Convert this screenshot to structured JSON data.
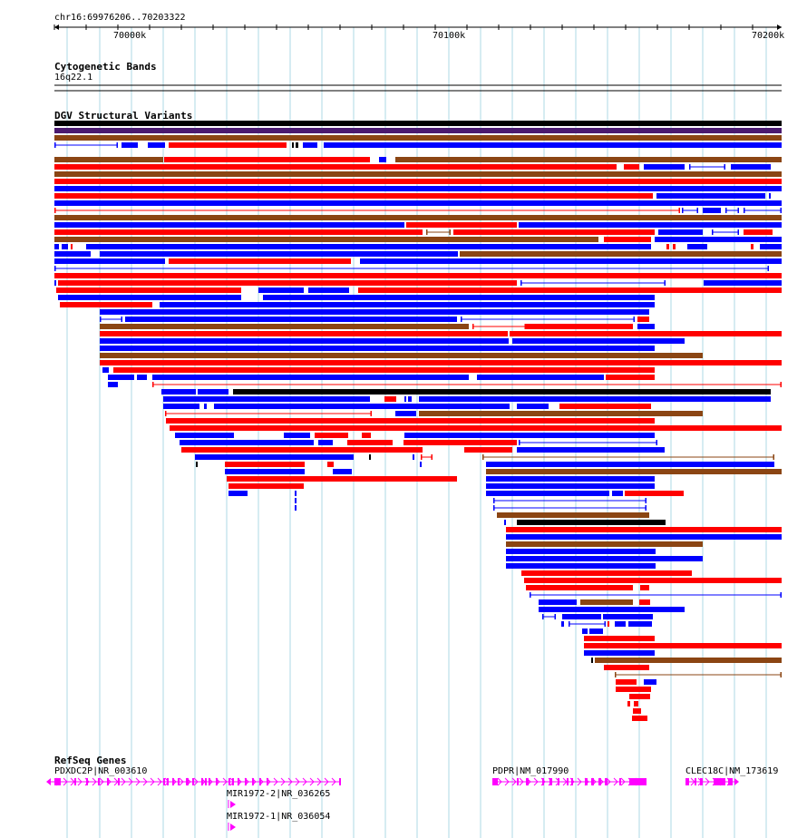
{
  "ruler": {
    "location": "chr16:69976206..70203322",
    "ticks": [
      "70000k",
      "70100k",
      "70200k"
    ]
  },
  "tracks": {
    "cytobands": {
      "title": "Cytogenetic Bands",
      "band": "16q22.1"
    },
    "dgv": {
      "title": "DGV Structural Variants"
    },
    "refseq": {
      "title": "RefSeq Genes",
      "genes": [
        "PDXDC2P|NR_003610",
        "MIR1972-2|NR_036265",
        "MIR1972-1|NR_036054",
        "PDPR|NM_017990",
        "CLEC18C|NM_173619"
      ]
    }
  },
  "colors": {
    "loss": "#ff0000",
    "gain": "#0000ff",
    "inversion": "#8b4513",
    "complex": "#000000",
    "other": "#4b1a70",
    "gene": "#ff00ff",
    "grid": "#add8e6"
  }
}
